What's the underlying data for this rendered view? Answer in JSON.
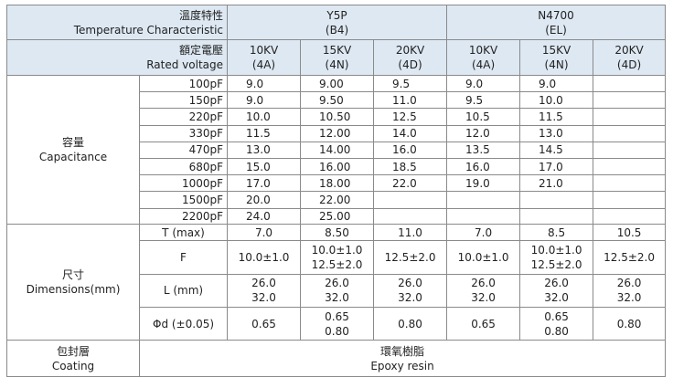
{
  "header": {
    "temp_zh": "溫度特性",
    "temp_en": "Temperature Characteristic",
    "y5p_name": "Y5P",
    "y5p_code": "(B4)",
    "n4700_name": "N4700",
    "n4700_code": "(EL)",
    "rated_zh": "額定電壓",
    "rated_en": "Rated voltage",
    "voltages": [
      {
        "kv": "10KV",
        "code": "(4A)"
      },
      {
        "kv": "15KV",
        "code": "(4N)"
      },
      {
        "kv": "20KV",
        "code": "(4D)"
      },
      {
        "kv": "10KV",
        "code": "(4A)"
      },
      {
        "kv": "15KV",
        "code": "(4N)"
      },
      {
        "kv": "20KV",
        "code": "(4D)"
      }
    ]
  },
  "capacitance": {
    "label_zh": "容量",
    "label_en": "Capacitance",
    "rows": [
      {
        "cap": "100pF",
        "vals": [
          "9.0",
          "9.00",
          "9.5",
          "9.0",
          "9.0",
          ""
        ]
      },
      {
        "cap": "150pF",
        "vals": [
          "9.0",
          "9.50",
          "11.0",
          "9.5",
          "10.0",
          ""
        ]
      },
      {
        "cap": "220pF",
        "vals": [
          "10.0",
          "10.50",
          "12.5",
          "10.5",
          "11.5",
          ""
        ]
      },
      {
        "cap": "330pF",
        "vals": [
          "11.5",
          "12.00",
          "14.0",
          "12.0",
          "13.0",
          ""
        ]
      },
      {
        "cap": "470pF",
        "vals": [
          "13.0",
          "14.00",
          "16.0",
          "13.5",
          "14.5",
          ""
        ]
      },
      {
        "cap": "680pF",
        "vals": [
          "15.0",
          "16.00",
          "18.5",
          "16.0",
          "17.0",
          ""
        ]
      },
      {
        "cap": "1000pF",
        "vals": [
          "17.0",
          "18.00",
          "22.0",
          "19.0",
          "21.0",
          ""
        ]
      },
      {
        "cap": "1500pF",
        "vals": [
          "20.0",
          "22.00",
          "",
          "",
          "",
          ""
        ]
      },
      {
        "cap": "2200pF",
        "vals": [
          "24.0",
          "25.00",
          "",
          "",
          "",
          ""
        ]
      }
    ]
  },
  "dimensions": {
    "label_zh": "尺寸",
    "label_en": "Dimensions(mm)",
    "t_label": "T (max)",
    "t_vals": [
      "7.0",
      "8.50",
      "11.0",
      "7.0",
      "8.5",
      "10.5"
    ],
    "f_label": "F",
    "f_vals": [
      [
        "10.0±1.0"
      ],
      [
        "10.0±1.0",
        "12.5±2.0"
      ],
      [
        "12.5±2.0"
      ],
      [
        "10.0±1.0"
      ],
      [
        "10.0±1.0",
        "12.5±2.0"
      ],
      [
        "12.5±2.0"
      ]
    ],
    "l_label": "L (mm)",
    "l_vals": [
      [
        "26.0",
        "32.0"
      ],
      [
        "26.0",
        "32.0"
      ],
      [
        "26.0",
        "32.0"
      ],
      [
        "26.0",
        "32.0"
      ],
      [
        "26.0",
        "32.0"
      ],
      [
        "26.0",
        "32.0"
      ]
    ],
    "d_label": "Φd (±0.05)",
    "d_vals": [
      [
        "0.65"
      ],
      [
        "0.65",
        "0.80"
      ],
      [
        "0.80"
      ],
      [
        "0.65"
      ],
      [
        "0.65",
        "0.80"
      ],
      [
        "0.80"
      ]
    ]
  },
  "coating": {
    "label_zh": "包封層",
    "label_en": "Coating",
    "value_zh": "環氧樹脂",
    "value_en": "Epoxy resin"
  }
}
